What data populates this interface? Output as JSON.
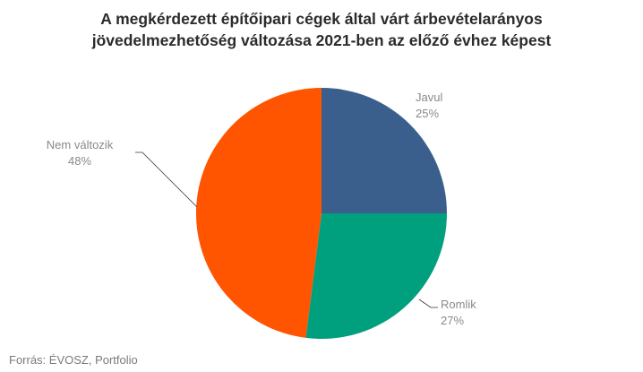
{
  "title": {
    "line1": "A megkérdezett építőipari cégek által várt árbevételarányos",
    "line2": "jövedelmezhetőség változása 2021-ben az előző évhez képest"
  },
  "chart_data": {
    "type": "pie",
    "slices": [
      {
        "label": "Javul",
        "value": 25,
        "value_label": "25%",
        "color": "#3a5f8c"
      },
      {
        "label": "Romlik",
        "value": 27,
        "value_label": "27%",
        "color": "#00a07f"
      },
      {
        "label": "Nem változik",
        "value": 48,
        "value_label": "48%",
        "color": "#ff5500"
      }
    ],
    "start": "top",
    "direction": "clockwise",
    "legend": "none"
  },
  "source": "Forrás: ÉVOSZ, Portfolio"
}
